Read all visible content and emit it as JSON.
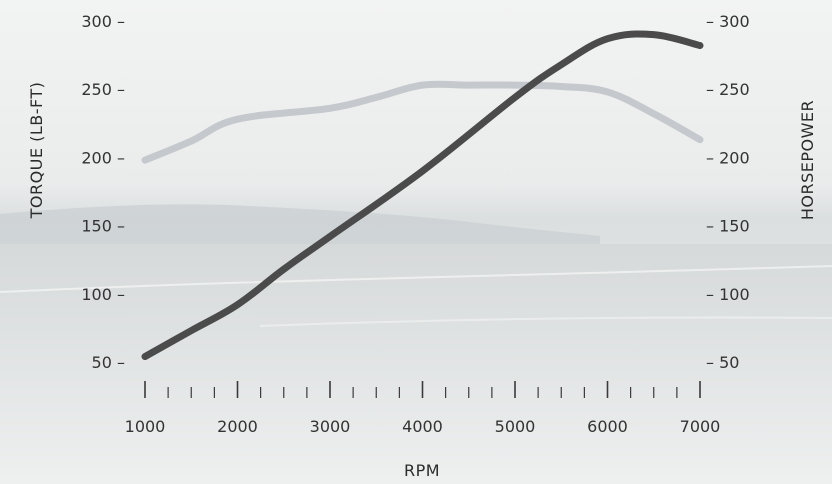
{
  "chart_data": {
    "type": "line",
    "xlabel": "RPM",
    "ylabel_left": "TORQUE (LB-FT)",
    "ylabel_right": "HORSEPOWER",
    "xlim": [
      1000,
      7000
    ],
    "ylim": [
      50,
      300
    ],
    "x_ticks": [
      1000,
      2000,
      3000,
      4000,
      5000,
      6000,
      7000
    ],
    "y_ticks": [
      50,
      100,
      150,
      200,
      250,
      300
    ],
    "series": [
      {
        "key": "torque",
        "axis": "left",
        "color": "#c5c8cd",
        "x": [
          1000,
          1500,
          2000,
          3000,
          3500,
          4000,
          4500,
          5000,
          5500,
          6000,
          6500,
          7000
        ],
        "y": [
          198,
          212,
          228,
          236,
          244,
          253,
          253,
          253,
          252,
          248,
          232,
          213
        ]
      },
      {
        "key": "horsepower",
        "axis": "right",
        "color": "#4b4b4b",
        "x": [
          1000,
          1500,
          2000,
          2500,
          3000,
          4000,
          5000,
          5500,
          6000,
          6500,
          7000
        ],
        "y": [
          54,
          73,
          92,
          118,
          142,
          190,
          244,
          268,
          287,
          290,
          282
        ]
      }
    ],
    "grid": false,
    "legend": "none"
  }
}
